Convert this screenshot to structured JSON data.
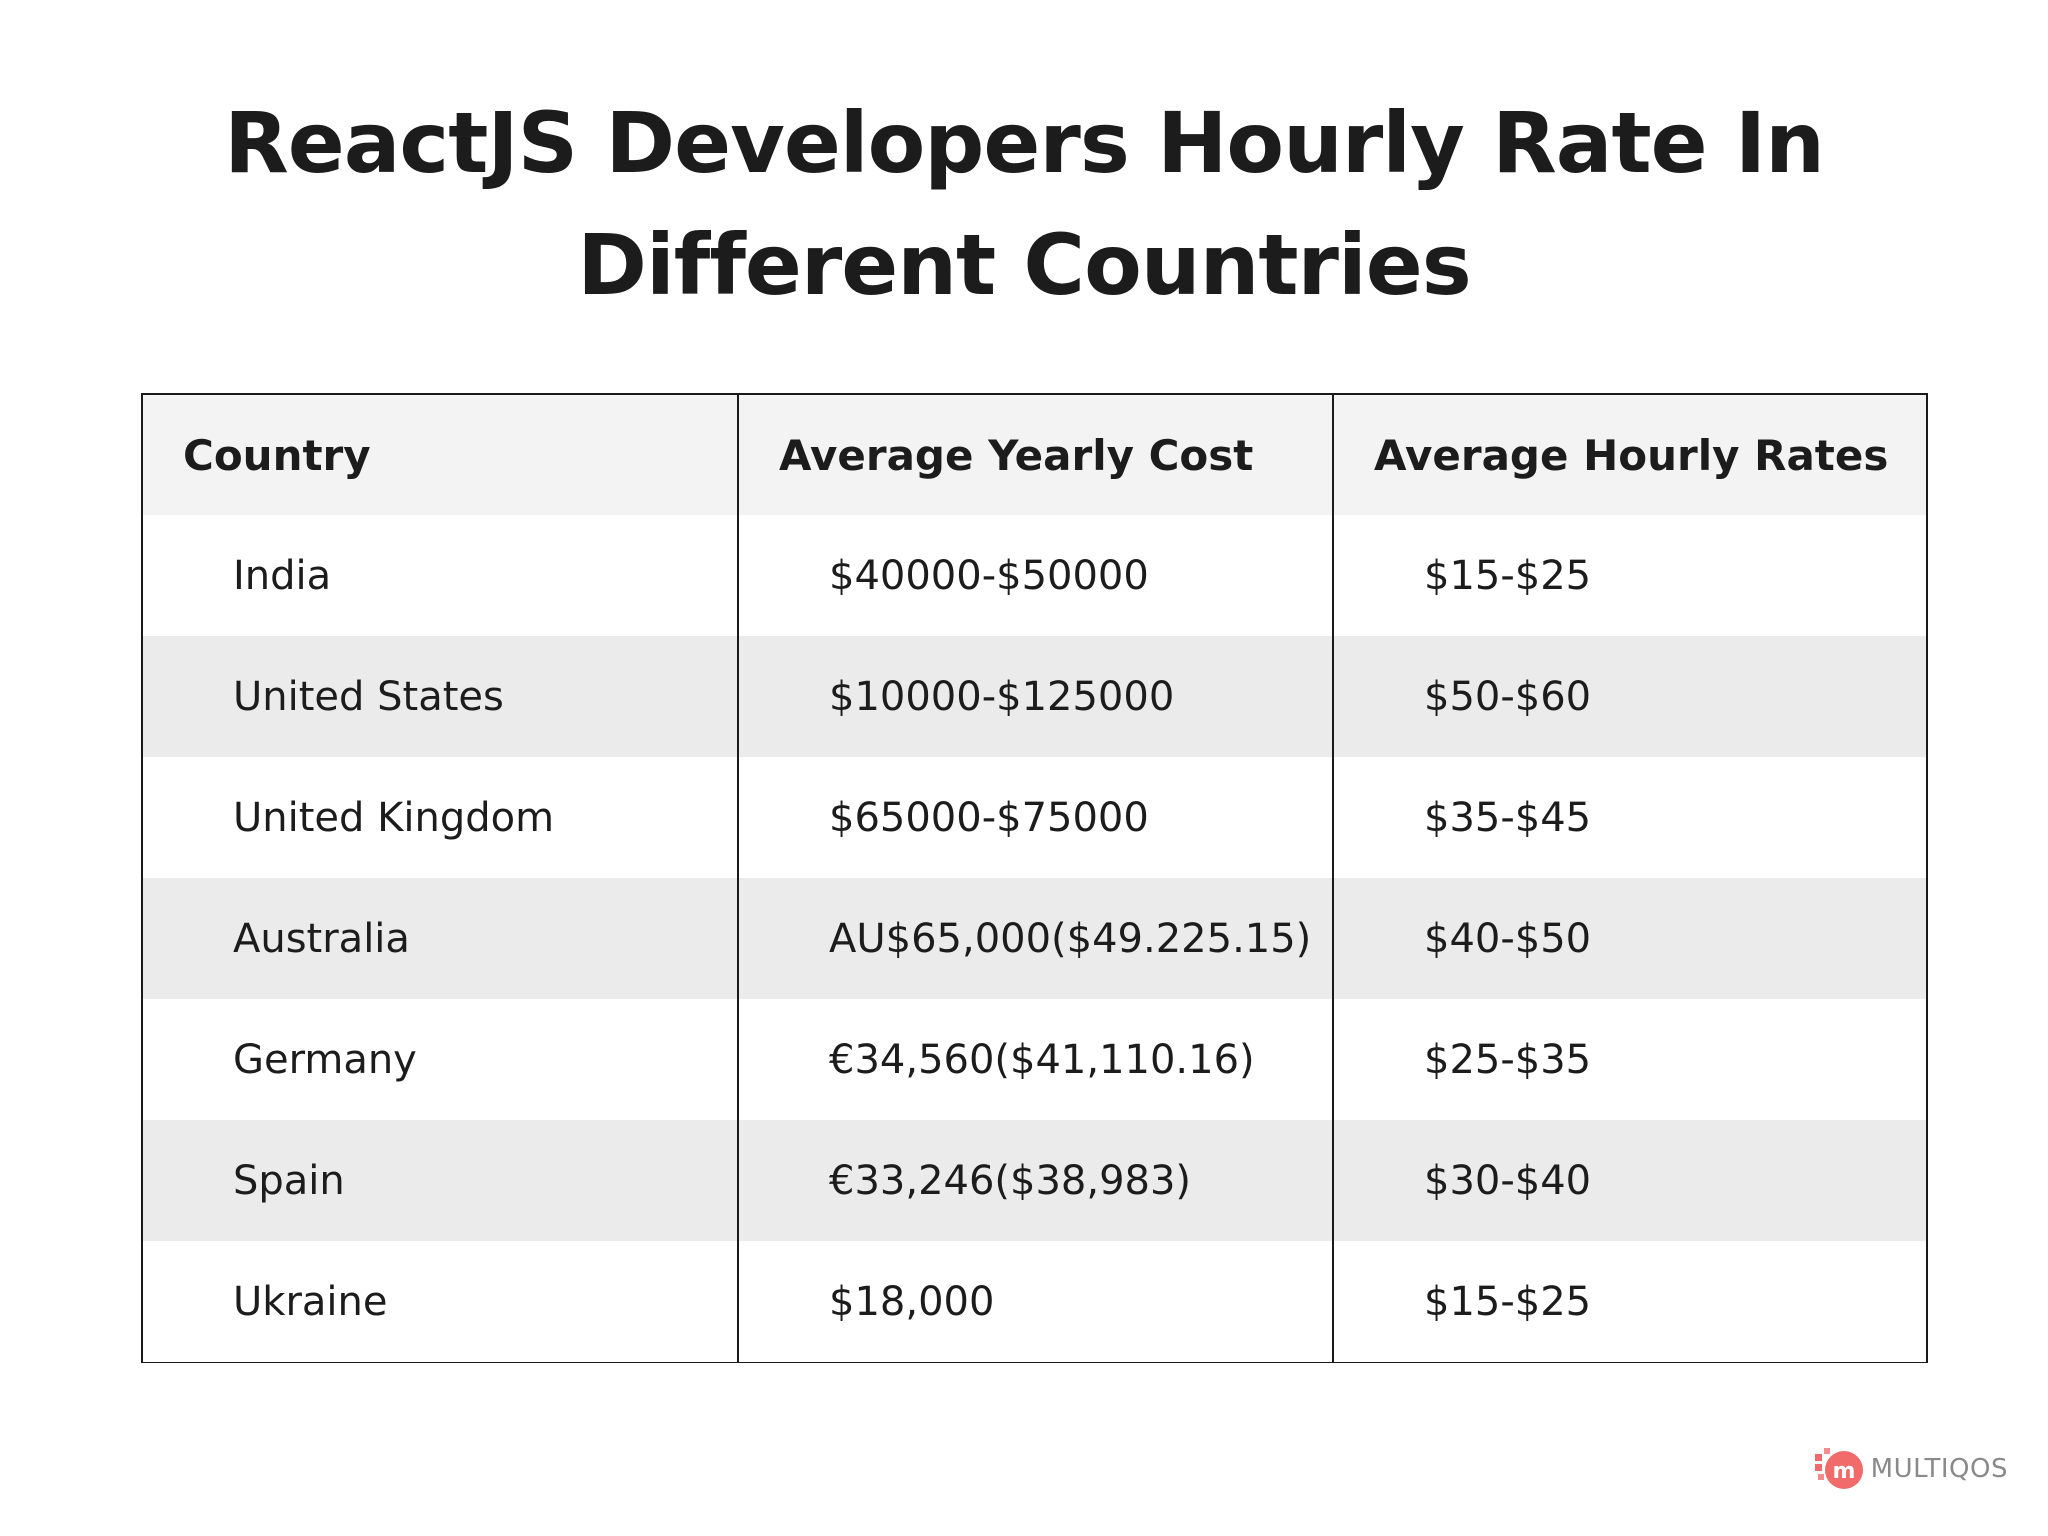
{
  "title": {
    "line1": "ReactJS Developers Hourly Rate In",
    "line2": "Different Countries"
  },
  "chart_data": {
    "type": "table",
    "columns": [
      "Country",
      "Average Yearly Cost",
      "Average Hourly Rates"
    ],
    "rows": [
      [
        "India",
        "$40000-$50000",
        "$15-$25"
      ],
      [
        "United States",
        "$10000-$125000",
        "$50-$60"
      ],
      [
        "United Kingdom",
        "$65000-$75000",
        "$35-$45"
      ],
      [
        "Australia",
        "AU$65,000($49.225.15)",
        "$40-$50"
      ],
      [
        "Germany",
        "€34,560($41,110.16)",
        "$25-$35"
      ],
      [
        "Spain",
        "€33,246($38,983)",
        "$30-$40"
      ],
      [
        "Ukraine",
        "$18,000",
        "$15-$25"
      ]
    ]
  },
  "brand": {
    "name": "MULTIQOS",
    "icon": "multiqos-logo-icon",
    "accent": "#f26b6b"
  },
  "colors": {
    "header_bg": "#f3f3f3",
    "stripe_bg": "#ebebeb",
    "border": "#1a1a1a",
    "text": "#1c1c1c"
  }
}
